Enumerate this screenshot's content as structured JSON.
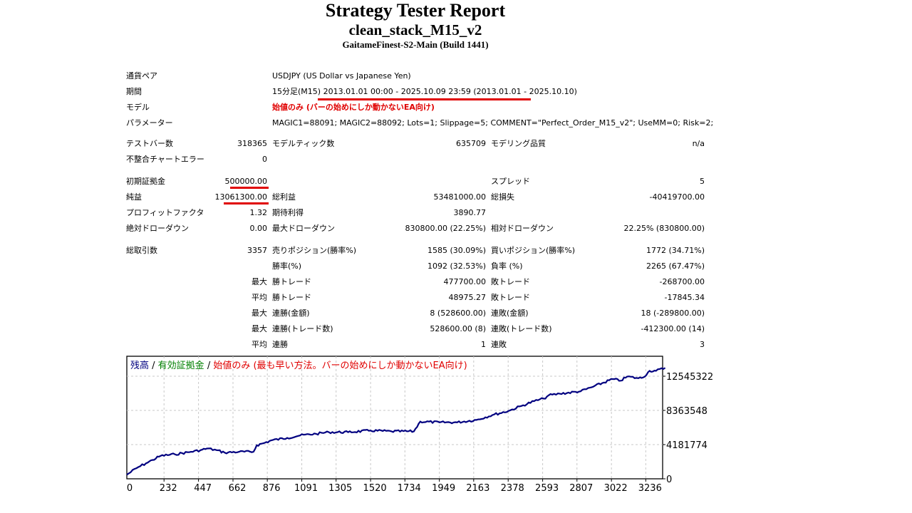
{
  "header": {
    "title": "Strategy Tester Report",
    "ea_name": "clean_stack_M15_v2",
    "server": "GaitameFinest-S2-Main (Build 1441)"
  },
  "info": {
    "symbol_label": "通貨ペア",
    "symbol_value": "USDJPY (US Dollar vs Japanese Yen)",
    "period_label": "期間",
    "period_prefix": "15分足(M15)",
    "period_value": "2013.01.01 00:00 - 2025.10.09 23:59 (2013.01.01 - 2025.10.10)",
    "model_label": "モデル",
    "model_value": "始値のみ (バーの始めにしか動かないEA向け)",
    "params_label": "パラメーター",
    "params_value": "MAGIC1=88091; MAGIC2=88092; Lots=1; Slippage=5; COMMENT=\"Perfect_Order_M15_v2\"; UseMM=0; Risk=2;"
  },
  "stats": {
    "bars_label": "テストバー数",
    "bars_value": "318365",
    "ticks_label": "モデルティック数",
    "ticks_value": "635709",
    "quality_label": "モデリング品質",
    "quality_value": "n/a",
    "errors_label": "不整合チャートエラー",
    "errors_value": "0",
    "deposit_label": "初期証拠金",
    "deposit_value": "500000.00",
    "spread_label": "スプレッド",
    "spread_value": "5",
    "net_label": "純益",
    "net_value": "13061300.00",
    "gross_profit_label": "総利益",
    "gross_profit_value": "53481000.00",
    "gross_loss_label": "総損失",
    "gross_loss_value": "-40419700.00",
    "pf_label": "プロフィットファクタ",
    "pf_value": "1.32",
    "expected_label": "期待利得",
    "expected_value": "3890.77",
    "abs_dd_label": "絶対ドローダウン",
    "abs_dd_value": "0.00",
    "max_dd_label": "最大ドローダウン",
    "max_dd_value": "830800.00 (22.25%)",
    "rel_dd_label": "相対ドローダウン",
    "rel_dd_value": "22.25% (830800.00)",
    "total_trades_label": "総取引数",
    "total_trades_value": "3357",
    "short_label": "売りポジション(勝率%)",
    "short_value": "1585 (30.09%)",
    "long_label": "買いポジション(勝率%)",
    "long_value": "1772 (34.71%)",
    "win_label": "勝率(%)",
    "win_value": "1092 (32.53%)",
    "loss_label": "負率 (%)",
    "loss_value": "2265 (67.47%)",
    "rows": [
      {
        "prefix": "最大",
        "l1": "勝トレード",
        "v1": "477700.00",
        "l2": "敗トレード",
        "v2": "-268700.00"
      },
      {
        "prefix": "平均",
        "l1": "勝トレード",
        "v1": "48975.27",
        "l2": "敗トレード",
        "v2": "-17845.34"
      },
      {
        "prefix": "最大",
        "l1": "連勝(金額)",
        "v1": "8 (528600.00)",
        "l2": "連敗(金額)",
        "v2": "18 (-289800.00)"
      },
      {
        "prefix": "最大",
        "l1": "連勝(トレード数)",
        "v1": "528600.00 (8)",
        "l2": "連敗(トレード数)",
        "v2": "-412300.00 (14)"
      },
      {
        "prefix": "平均",
        "l1": "連勝",
        "v1": "1",
        "l2": "連敗",
        "v2": "3"
      }
    ]
  },
  "colors": {
    "balance": "#000080",
    "equity": "#008000",
    "model": "#e00000",
    "underline": "#e00000"
  },
  "chart_data": {
    "type": "line",
    "title_parts": [
      "残高",
      " / ",
      "有効証拠金",
      " / ",
      "始値のみ (最も早い方法。バーの始めにしか動かないEA向け)"
    ],
    "xlabel": "",
    "ylabel": "",
    "x_ticks": [
      "0",
      "232",
      "447",
      "662",
      "876",
      "1091",
      "1305",
      "1520",
      "1734",
      "1949",
      "2163",
      "2378",
      "2593",
      "2807",
      "3022",
      "3236"
    ],
    "y_ticks": [
      "0",
      "4181774",
      "8363548",
      "12545322"
    ],
    "xlim": [
      0,
      3400
    ],
    "ylim": [
      0,
      17900000
    ],
    "grid": true,
    "series": [
      {
        "name": "残高",
        "x": [
          0,
          60,
          120,
          160,
          210,
          300,
          400,
          460,
          500,
          560,
          610,
          700,
          790,
          810,
          860,
          900,
          1000,
          1080,
          1180,
          1260,
          1380,
          1520,
          1650,
          1790,
          1830,
          1950,
          2060,
          2180,
          2280,
          2380,
          2460,
          2540,
          2600,
          2630,
          2700,
          2830,
          2900,
          3030,
          3080,
          3120,
          3190,
          3220,
          3260,
          3300,
          3357
        ],
        "y": [
          500000,
          1300000,
          1900000,
          2300000,
          2800000,
          3000000,
          3300000,
          3500000,
          3700000,
          3500000,
          3200000,
          3300000,
          3300000,
          4100000,
          4400000,
          4700000,
          5000000,
          5300000,
          5500000,
          5700000,
          5700000,
          5900000,
          5800000,
          5800000,
          7000000,
          6900000,
          6900000,
          7200000,
          7800000,
          8300000,
          8900000,
          9500000,
          9800000,
          10200000,
          10400000,
          10700000,
          11200000,
          12200000,
          12000000,
          12500000,
          12300000,
          12400000,
          13200000,
          13200000,
          13561300
        ]
      }
    ]
  }
}
